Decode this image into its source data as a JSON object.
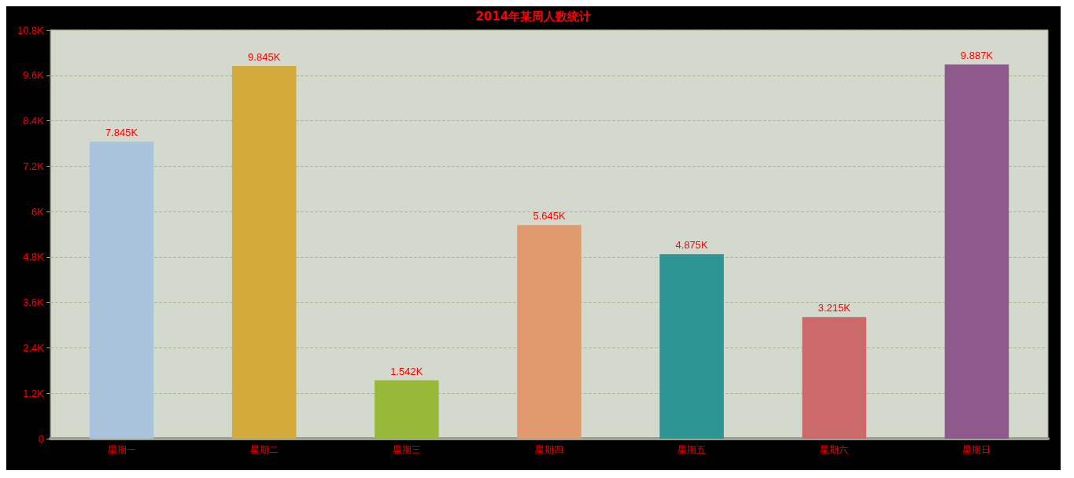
{
  "chart_data": {
    "type": "bar",
    "title": "2014年某周人数统计",
    "categories": [
      "星期一",
      "星期二",
      "星期三",
      "星期四",
      "星期五",
      "星期六",
      "星期日"
    ],
    "values": [
      7845,
      9845,
      1542,
      5645,
      4875,
      3215,
      9887
    ],
    "value_labels": [
      "7.845K",
      "9.845K",
      "1.542K",
      "5.645K",
      "4.875K",
      "3.215K",
      "9.887K"
    ],
    "colors": [
      "#a9c3dc",
      "#d4aa3a",
      "#98b83a",
      "#e09a6e",
      "#2e9595",
      "#cc6a6a",
      "#8e5a8c"
    ],
    "ylim": [
      0,
      10800
    ],
    "yticks": [
      0,
      {
        "value": 1200,
        "label": "1.2K"
      },
      {
        "value": 2400,
        "label": "2.4K"
      },
      {
        "value": 3600,
        "label": "3.6K"
      },
      {
        "value": 4800,
        "label": "4.8K"
      },
      {
        "value": 6000,
        "label": "6K"
      },
      {
        "value": 7200,
        "label": "7.2K"
      },
      {
        "value": 8400,
        "label": "8.4K"
      },
      {
        "value": 9600,
        "label": "9.6K"
      },
      {
        "value": 10800,
        "label": "10.8K"
      }
    ],
    "grid": "y"
  }
}
